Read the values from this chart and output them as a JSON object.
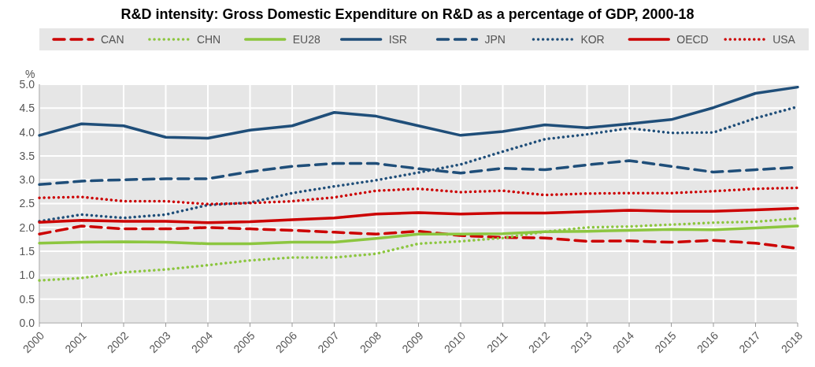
{
  "chart_data": {
    "type": "line",
    "title": "R&D intensity: Gross Domestic Expenditure on R&D as a percentage of GDP, 2000-18",
    "ylabel": "%",
    "categories": [
      "2000",
      "2001",
      "2002",
      "2003",
      "2004",
      "2005",
      "2006",
      "2007",
      "2008",
      "2009",
      "2010",
      "2011",
      "2012",
      "2013",
      "2014",
      "2015",
      "2016",
      "2017",
      "2018"
    ],
    "ylim": [
      0,
      5
    ],
    "yticks": [
      {
        "value": 0,
        "label": "0.0"
      },
      {
        "value": 0.5,
        "label": "0.5"
      },
      {
        "value": 1,
        "label": "1.0"
      },
      {
        "value": 1.5,
        "label": "1.5"
      },
      {
        "value": 2,
        "label": "2.0"
      },
      {
        "value": 2.5,
        "label": "2.5"
      },
      {
        "value": 3,
        "label": "3.0"
      },
      {
        "value": 3.5,
        "label": "3.5"
      },
      {
        "value": 4,
        "label": "4.0"
      },
      {
        "value": 4.5,
        "label": "4.5"
      },
      {
        "value": 5,
        "label": "5.0"
      }
    ],
    "grid": true,
    "legend": "top",
    "marker": "none",
    "series": [
      {
        "name": "CAN",
        "color": "#cc0000",
        "line_style": "dashed",
        "values": [
          1.86,
          2.03,
          1.97,
          1.97,
          2.0,
          1.97,
          1.94,
          1.9,
          1.86,
          1.92,
          1.83,
          1.79,
          1.78,
          1.71,
          1.72,
          1.69,
          1.73,
          1.67,
          1.56
        ]
      },
      {
        "name": "CHN",
        "color": "#8cc63f",
        "line_style": "dotted",
        "values": [
          0.89,
          0.94,
          1.06,
          1.12,
          1.21,
          1.31,
          1.37,
          1.37,
          1.45,
          1.66,
          1.71,
          1.78,
          1.91,
          2.0,
          2.02,
          2.06,
          2.1,
          2.12,
          2.19
        ]
      },
      {
        "name": "EU28",
        "color": "#8cc63f",
        "line_style": "solid",
        "values": [
          1.67,
          1.69,
          1.7,
          1.69,
          1.66,
          1.66,
          1.69,
          1.69,
          1.77,
          1.86,
          1.86,
          1.87,
          1.91,
          1.92,
          1.94,
          1.96,
          1.95,
          1.99,
          2.03
        ]
      },
      {
        "name": "ISR",
        "color": "#1f4e79",
        "line_style": "solid",
        "values": [
          3.93,
          4.17,
          4.13,
          3.89,
          3.87,
          4.04,
          4.13,
          4.41,
          4.33,
          4.13,
          3.93,
          4.01,
          4.15,
          4.09,
          4.17,
          4.26,
          4.51,
          4.81,
          4.94
        ]
      },
      {
        "name": "JPN",
        "color": "#1f4e79",
        "line_style": "dashed",
        "values": [
          2.9,
          2.97,
          3.0,
          3.02,
          3.02,
          3.17,
          3.28,
          3.34,
          3.34,
          3.23,
          3.14,
          3.24,
          3.21,
          3.31,
          3.4,
          3.28,
          3.16,
          3.21,
          3.26
        ]
      },
      {
        "name": "KOR",
        "color": "#1f4e79",
        "line_style": "dotted",
        "values": [
          2.13,
          2.27,
          2.2,
          2.27,
          2.47,
          2.52,
          2.72,
          2.86,
          2.99,
          3.15,
          3.32,
          3.59,
          3.85,
          3.95,
          4.08,
          3.98,
          3.99,
          4.29,
          4.53
        ]
      },
      {
        "name": "OECD",
        "color": "#cc0000",
        "line_style": "solid",
        "values": [
          2.11,
          2.15,
          2.13,
          2.13,
          2.1,
          2.12,
          2.16,
          2.2,
          2.28,
          2.31,
          2.28,
          2.3,
          2.3,
          2.33,
          2.36,
          2.34,
          2.34,
          2.37,
          2.4
        ]
      },
      {
        "name": "USA",
        "color": "#cc0000",
        "line_style": "dotted",
        "values": [
          2.62,
          2.64,
          2.55,
          2.55,
          2.49,
          2.51,
          2.55,
          2.63,
          2.77,
          2.81,
          2.74,
          2.77,
          2.68,
          2.71,
          2.72,
          2.72,
          2.76,
          2.81,
          2.83
        ]
      }
    ]
  }
}
